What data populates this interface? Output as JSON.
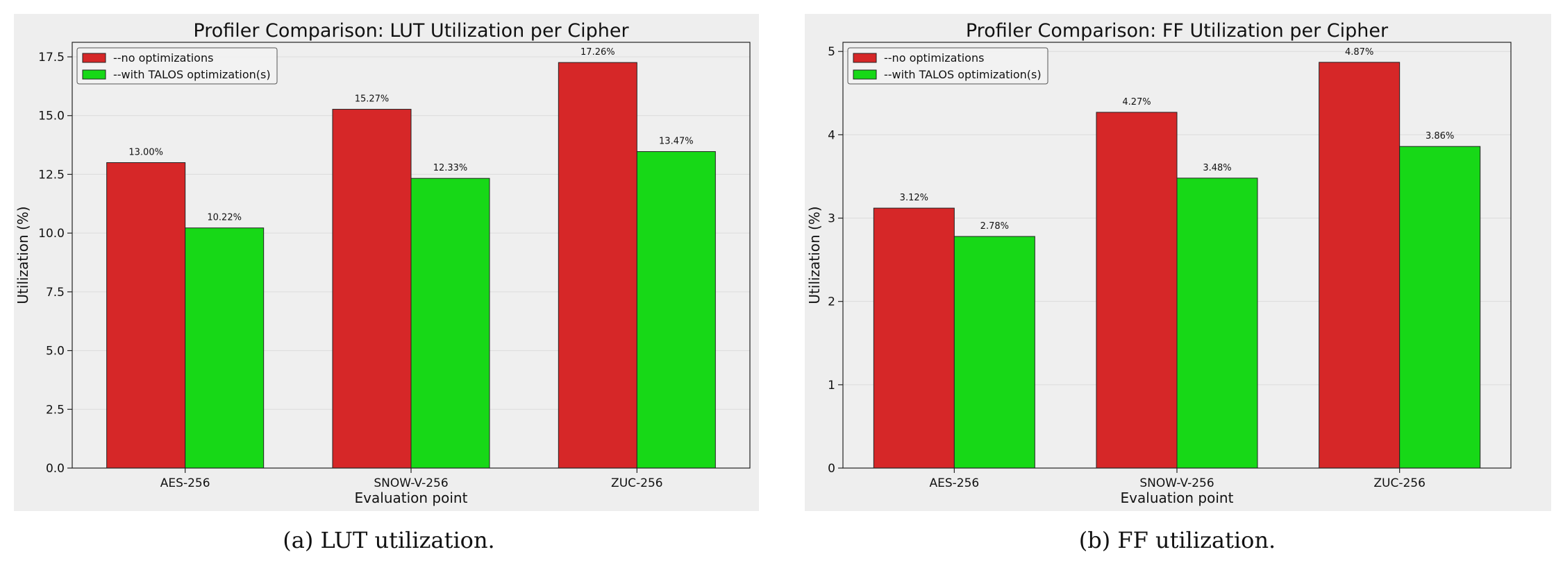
{
  "chart_data": [
    {
      "type": "bar",
      "title": "Profiler Comparison: LUT Utilization per Cipher",
      "xlabel": "Evaluation point",
      "ylabel": "Utilization (%)",
      "categories": [
        "AES-256",
        "SNOW-V-256",
        "ZUC-256"
      ],
      "series": [
        {
          "name": "--no optimizations",
          "values": [
            13.0,
            15.27,
            17.26
          ],
          "color": "#d62728"
        },
        {
          "name": "--with TALOS optimization(s)",
          "values": [
            10.22,
            12.33,
            13.47
          ],
          "color": "#17d817"
        }
      ],
      "data_labels": [
        [
          "13.00%",
          "15.27%",
          "17.26%"
        ],
        [
          "10.22%",
          "12.33%",
          "13.47%"
        ]
      ],
      "ylim": [
        0,
        18.12
      ],
      "yticks": [
        0.0,
        2.5,
        5.0,
        7.5,
        10.0,
        12.5,
        15.0,
        17.5
      ],
      "ytick_labels": [
        "0.0",
        "2.5",
        "5.0",
        "7.5",
        "10.0",
        "12.5",
        "15.0",
        "17.5"
      ],
      "grid": "y",
      "legend": "top-left",
      "caption": "(a) LUT utilization."
    },
    {
      "type": "bar",
      "title": "Profiler Comparison: FF Utilization per Cipher",
      "xlabel": "Evaluation point",
      "ylabel": "Utilization (%)",
      "categories": [
        "AES-256",
        "SNOW-V-256",
        "ZUC-256"
      ],
      "series": [
        {
          "name": "--no optimizations",
          "values": [
            3.12,
            4.27,
            4.87
          ],
          "color": "#d62728"
        },
        {
          "name": "--with TALOS optimization(s)",
          "values": [
            2.78,
            3.48,
            3.86
          ],
          "color": "#17d817"
        }
      ],
      "data_labels": [
        [
          "3.12%",
          "4.27%",
          "4.87%"
        ],
        [
          "2.78%",
          "3.48%",
          "3.86%"
        ]
      ],
      "ylim": [
        0,
        5.11
      ],
      "yticks": [
        0,
        1,
        2,
        3,
        4,
        5
      ],
      "ytick_labels": [
        "0",
        "1",
        "2",
        "3",
        "4",
        "5"
      ],
      "grid": "y",
      "legend": "top-left",
      "caption": "(b) FF utilization."
    }
  ]
}
